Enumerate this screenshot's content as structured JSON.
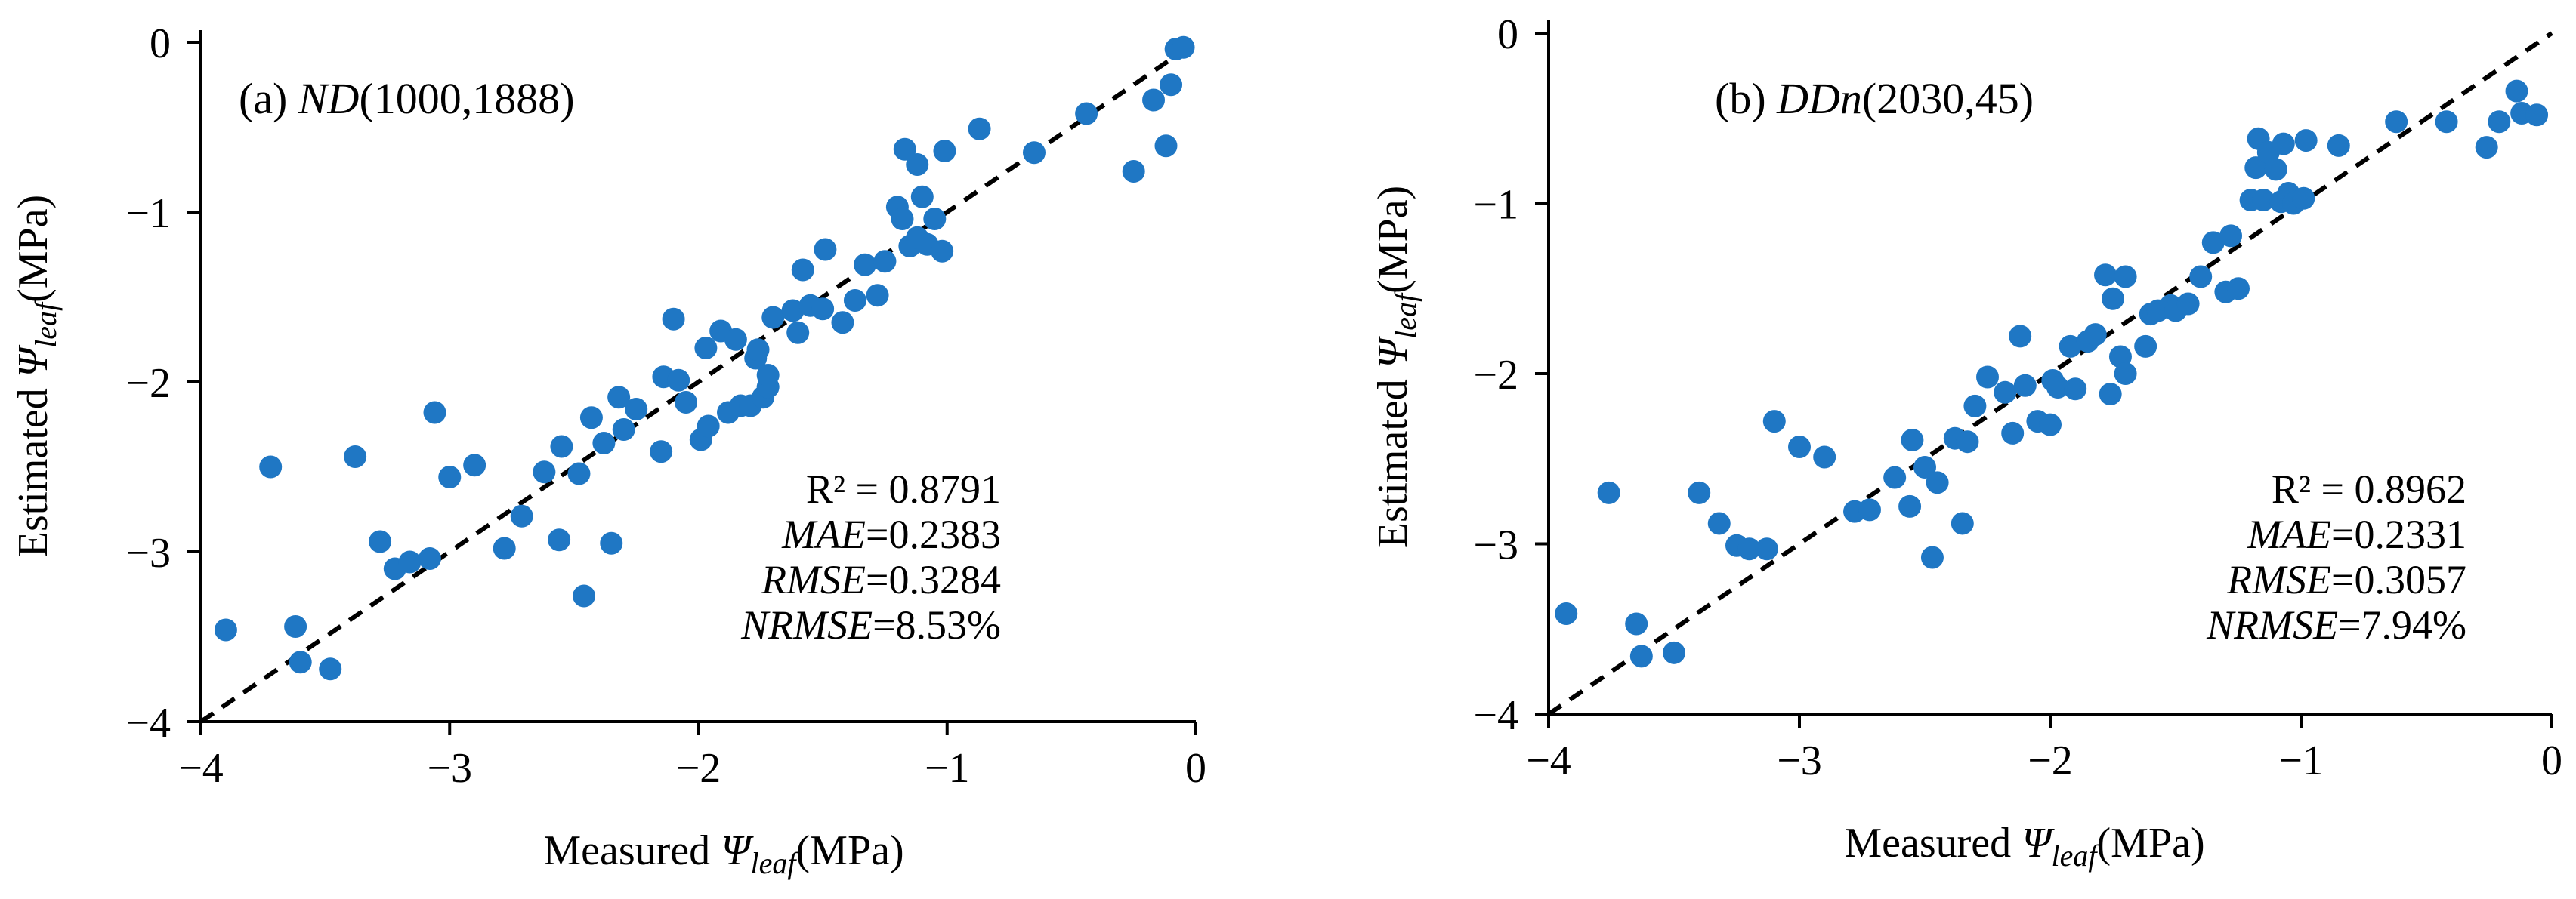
{
  "colors": {
    "marker": "#1f77c4",
    "axis": "#000000"
  },
  "chart_data": [
    {
      "type": "scatter",
      "panel_id": "a",
      "panel_prefix": "(a) ",
      "model_name": "ND",
      "model_params": "(1000,1888)",
      "xlabel_prefix": "Measured ",
      "ylabel_prefix": "Estimated ",
      "symbol": "Ψ",
      "subscript": "leaf",
      "unit": "(MPa)",
      "xlim": [
        -4,
        0
      ],
      "ylim": [
        -4,
        0
      ],
      "xticks": [
        -4,
        -3,
        -2,
        -1,
        0
      ],
      "yticks": [
        -4,
        -3,
        -2,
        -1,
        0
      ],
      "tick_labels": [
        "−4",
        "−3",
        "−2",
        "−1",
        "0"
      ],
      "fit_line": "1:1",
      "stats": [
        {
          "label": "R²",
          "italic": false,
          "value": " = 0.8791"
        },
        {
          "label": "MAE",
          "italic": true,
          "value": "=0.2383"
        },
        {
          "label": "RMSE",
          "italic": true,
          "value": "=0.3284"
        },
        {
          "label": "NRMSE",
          "italic": true,
          "value": "=8.53%"
        }
      ],
      "points": [
        [
          -3.9,
          -3.46
        ],
        [
          -3.72,
          -2.5
        ],
        [
          -3.62,
          -3.44
        ],
        [
          -3.6,
          -3.65
        ],
        [
          -3.48,
          -3.69
        ],
        [
          -3.38,
          -2.44
        ],
        [
          -3.28,
          -2.94
        ],
        [
          -3.22,
          -3.1
        ],
        [
          -3.16,
          -3.06
        ],
        [
          -3.08,
          -3.04
        ],
        [
          -3.06,
          -2.18
        ],
        [
          -3.0,
          -2.56
        ],
        [
          -2.9,
          -2.49
        ],
        [
          -2.78,
          -2.98
        ],
        [
          -2.71,
          -2.79
        ],
        [
          -2.62,
          -2.53
        ],
        [
          -2.56,
          -2.93
        ],
        [
          -2.55,
          -2.38
        ],
        [
          -2.48,
          -2.54
        ],
        [
          -2.46,
          -3.26
        ],
        [
          -2.43,
          -2.21
        ],
        [
          -2.38,
          -2.36
        ],
        [
          -2.35,
          -2.95
        ],
        [
          -2.32,
          -2.09
        ],
        [
          -2.3,
          -2.28
        ],
        [
          -2.25,
          -2.16
        ],
        [
          -2.15,
          -2.41
        ],
        [
          -2.14,
          -1.97
        ],
        [
          -2.1,
          -1.63
        ],
        [
          -2.08,
          -1.99
        ],
        [
          -2.05,
          -2.12
        ],
        [
          -1.99,
          -2.34
        ],
        [
          -1.97,
          -1.8
        ],
        [
          -1.96,
          -2.26
        ],
        [
          -1.91,
          -1.7
        ],
        [
          -1.88,
          -2.18
        ],
        [
          -1.85,
          -1.75
        ],
        [
          -1.83,
          -2.14
        ],
        [
          -1.79,
          -2.14
        ],
        [
          -1.77,
          -1.86
        ],
        [
          -1.76,
          -1.81
        ],
        [
          -1.74,
          -2.09
        ],
        [
          -1.72,
          -2.03
        ],
        [
          -1.72,
          -1.96
        ],
        [
          -1.7,
          -1.62
        ],
        [
          -1.62,
          -1.58
        ],
        [
          -1.6,
          -1.71
        ],
        [
          -1.58,
          -1.34
        ],
        [
          -1.55,
          -1.55
        ],
        [
          -1.5,
          -1.57
        ],
        [
          -1.49,
          -1.22
        ],
        [
          -1.42,
          -1.65
        ],
        [
          -1.37,
          -1.52
        ],
        [
          -1.33,
          -1.31
        ],
        [
          -1.28,
          -1.49
        ],
        [
          -1.25,
          -1.29
        ],
        [
          -1.2,
          -0.97
        ],
        [
          -1.18,
          -1.04
        ],
        [
          -1.17,
          -0.63
        ],
        [
          -1.15,
          -1.2
        ],
        [
          -1.12,
          -1.15
        ],
        [
          -1.12,
          -0.72
        ],
        [
          -1.1,
          -0.91
        ],
        [
          -1.08,
          -1.19
        ],
        [
          -1.05,
          -1.04
        ],
        [
          -1.02,
          -1.23
        ],
        [
          -1.01,
          -0.64
        ],
        [
          -0.87,
          -0.51
        ],
        [
          -0.65,
          -0.65
        ],
        [
          -0.44,
          -0.42
        ],
        [
          -0.25,
          -0.76
        ],
        [
          -0.17,
          -0.34
        ],
        [
          -0.12,
          -0.61
        ],
        [
          -0.1,
          -0.25
        ],
        [
          -0.08,
          -0.04
        ],
        [
          -0.05,
          -0.03
        ]
      ]
    },
    {
      "type": "scatter",
      "panel_id": "b",
      "panel_prefix": "(b) ",
      "model_name": "DDn",
      "model_params": "(2030,45)",
      "xlabel_prefix": "Measured ",
      "ylabel_prefix": "Estimated ",
      "symbol": "Ψ",
      "subscript": "leaf",
      "unit": "(MPa)",
      "xlim": [
        -4,
        0
      ],
      "ylim": [
        -4,
        0
      ],
      "xticks": [
        -4,
        -3,
        -2,
        -1,
        0
      ],
      "yticks": [
        -4,
        -3,
        -2,
        -1,
        0
      ],
      "tick_labels": [
        "−4",
        "−3",
        "−2",
        "−1",
        "0"
      ],
      "fit_line": "1:1",
      "stats": [
        {
          "label": "R²",
          "italic": false,
          "value": " = 0.8962"
        },
        {
          "label": "MAE",
          "italic": true,
          "value": "=0.2331"
        },
        {
          "label": "RMSE",
          "italic": true,
          "value": "=0.3057"
        },
        {
          "label": "NRMSE",
          "italic": true,
          "value": "=7.94%"
        }
      ],
      "points": [
        [
          -3.93,
          -3.41
        ],
        [
          -3.76,
          -2.7
        ],
        [
          -3.65,
          -3.47
        ],
        [
          -3.63,
          -3.66
        ],
        [
          -3.5,
          -3.64
        ],
        [
          -3.4,
          -2.7
        ],
        [
          -3.32,
          -2.88
        ],
        [
          -3.25,
          -3.01
        ],
        [
          -3.2,
          -3.03
        ],
        [
          -3.13,
          -3.03
        ],
        [
          -3.1,
          -2.28
        ],
        [
          -3.0,
          -2.43
        ],
        [
          -2.9,
          -2.49
        ],
        [
          -2.78,
          -2.81
        ],
        [
          -2.72,
          -2.8
        ],
        [
          -2.62,
          -2.61
        ],
        [
          -2.56,
          -2.78
        ],
        [
          -2.55,
          -2.39
        ],
        [
          -2.5,
          -2.55
        ],
        [
          -2.47,
          -3.08
        ],
        [
          -2.45,
          -2.64
        ],
        [
          -2.38,
          -2.38
        ],
        [
          -2.35,
          -2.88
        ],
        [
          -2.33,
          -2.4
        ],
        [
          -2.3,
          -2.19
        ],
        [
          -2.25,
          -2.02
        ],
        [
          -2.18,
          -2.11
        ],
        [
          -2.15,
          -2.35
        ],
        [
          -2.12,
          -1.78
        ],
        [
          -2.1,
          -2.07
        ],
        [
          -2.05,
          -2.28
        ],
        [
          -2.0,
          -2.3
        ],
        [
          -1.99,
          -2.04
        ],
        [
          -1.97,
          -2.08
        ],
        [
          -1.92,
          -1.84
        ],
        [
          -1.9,
          -2.09
        ],
        [
          -1.85,
          -1.81
        ],
        [
          -1.82,
          -1.77
        ],
        [
          -1.78,
          -1.42
        ],
        [
          -1.76,
          -2.12
        ],
        [
          -1.75,
          -1.56
        ],
        [
          -1.72,
          -1.9
        ],
        [
          -1.7,
          -1.43
        ],
        [
          -1.7,
          -2.0
        ],
        [
          -1.62,
          -1.84
        ],
        [
          -1.6,
          -1.65
        ],
        [
          -1.57,
          -1.63
        ],
        [
          -1.52,
          -1.6
        ],
        [
          -1.5,
          -1.63
        ],
        [
          -1.45,
          -1.59
        ],
        [
          -1.4,
          -1.43
        ],
        [
          -1.35,
          -1.23
        ],
        [
          -1.3,
          -1.52
        ],
        [
          -1.28,
          -1.19
        ],
        [
          -1.25,
          -1.5
        ],
        [
          -1.2,
          -0.98
        ],
        [
          -1.18,
          -0.79
        ],
        [
          -1.17,
          -0.62
        ],
        [
          -1.15,
          -0.98
        ],
        [
          -1.13,
          -0.7
        ],
        [
          -1.1,
          -0.8
        ],
        [
          -1.08,
          -0.99
        ],
        [
          -1.07,
          -0.65
        ],
        [
          -1.05,
          -0.94
        ],
        [
          -1.03,
          -1.0
        ],
        [
          -0.99,
          -0.97
        ],
        [
          -0.98,
          -0.63
        ],
        [
          -0.85,
          -0.66
        ],
        [
          -0.62,
          -0.52
        ],
        [
          -0.42,
          -0.52
        ],
        [
          -0.26,
          -0.67
        ],
        [
          -0.21,
          -0.52
        ],
        [
          -0.14,
          -0.34
        ],
        [
          -0.12,
          -0.47
        ],
        [
          -0.06,
          -0.48
        ]
      ]
    }
  ]
}
